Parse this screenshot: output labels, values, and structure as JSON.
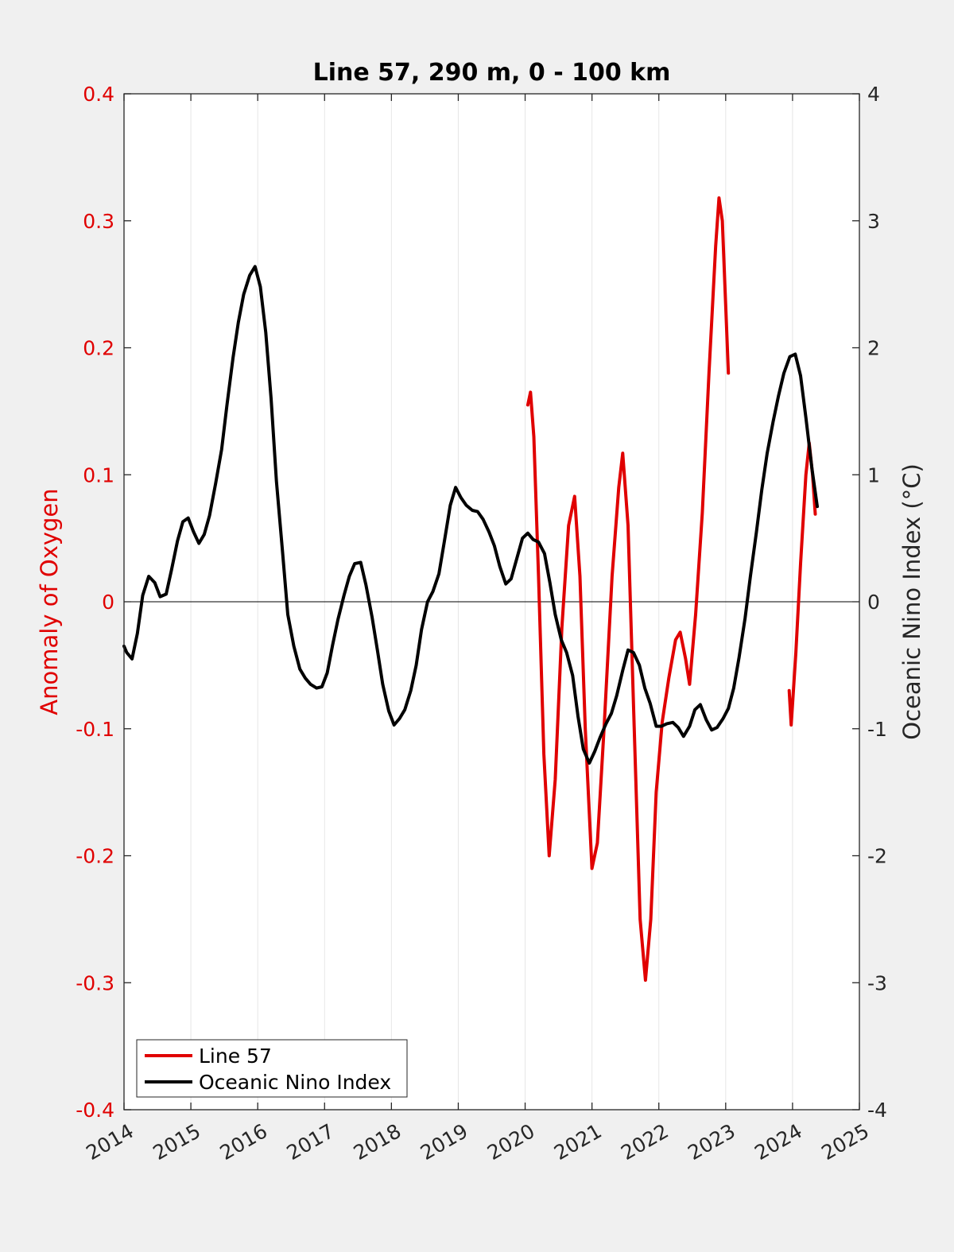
{
  "chart_data": {
    "type": "line",
    "title": "Line 57, 290 m, 0 - 100 km",
    "xlim": [
      2014,
      2025
    ],
    "x_ticks": [
      "2014",
      "2015",
      "2016",
      "2017",
      "2018",
      "2019",
      "2020",
      "2021",
      "2022",
      "2023",
      "2024",
      "2025"
    ],
    "y_left": {
      "label": "Anomaly of Oxygen",
      "range": [
        -0.4,
        0.4
      ],
      "ticks": [
        "-0.4",
        "-0.3",
        "-0.2",
        "-0.1",
        "0",
        "0.1",
        "0.2",
        "0.3",
        "0.4"
      ],
      "color": "#e00000"
    },
    "y_right": {
      "label": "Oceanic Nino Index (°C)",
      "range": [
        -4,
        4
      ],
      "ticks": [
        "-4",
        "-3",
        "-2",
        "-1",
        "0",
        "1",
        "2",
        "3",
        "4"
      ],
      "color": "#262626"
    },
    "grid": "vertical",
    "zero_line": true,
    "legend_position": "bottom-left",
    "series": [
      {
        "name": "Line 57",
        "axis": "left",
        "color": "#e00000",
        "segments": [
          [
            [
              2020.04,
              0.155
            ],
            [
              2020.08,
              0.165
            ],
            [
              2020.13,
              0.13
            ],
            [
              2020.2,
              0.02
            ],
            [
              2020.28,
              -0.12
            ],
            [
              2020.36,
              -0.2
            ],
            [
              2020.45,
              -0.14
            ],
            [
              2020.55,
              -0.02
            ],
            [
              2020.65,
              0.06
            ],
            [
              2020.74,
              0.083
            ],
            [
              2020.82,
              0.02
            ],
            [
              2020.9,
              -0.1
            ],
            [
              2021.0,
              -0.21
            ],
            [
              2021.08,
              -0.19
            ],
            [
              2021.18,
              -0.1
            ],
            [
              2021.3,
              0.02
            ],
            [
              2021.4,
              0.09
            ],
            [
              2021.46,
              0.117
            ],
            [
              2021.54,
              0.06
            ],
            [
              2021.62,
              -0.08
            ],
            [
              2021.72,
              -0.25
            ],
            [
              2021.8,
              -0.298
            ],
            [
              2021.88,
              -0.25
            ],
            [
              2021.96,
              -0.15
            ],
            [
              2022.05,
              -0.095
            ],
            [
              2022.15,
              -0.06
            ],
            [
              2022.25,
              -0.03
            ],
            [
              2022.32,
              -0.024
            ],
            [
              2022.4,
              -0.045
            ],
            [
              2022.46,
              -0.065
            ],
            [
              2022.55,
              -0.01
            ],
            [
              2022.65,
              0.07
            ],
            [
              2022.75,
              0.18
            ],
            [
              2022.85,
              0.28
            ],
            [
              2022.9,
              0.318
            ],
            [
              2022.95,
              0.3
            ],
            [
              2023.04,
              0.18
            ]
          ],
          [
            [
              2023.95,
              -0.07
            ],
            [
              2023.98,
              -0.097
            ],
            [
              2024.05,
              -0.04
            ],
            [
              2024.12,
              0.03
            ],
            [
              2024.2,
              0.1
            ],
            [
              2024.25,
              0.125
            ],
            [
              2024.3,
              0.1
            ],
            [
              2024.34,
              0.069
            ]
          ]
        ]
      },
      {
        "name": "Oceanic Nino Index",
        "axis": "right",
        "color": "#000000",
        "segments": [
          [
            [
              2014.0,
              -0.35
            ],
            [
              2014.04,
              -0.4
            ],
            [
              2014.12,
              -0.45
            ],
            [
              2014.2,
              -0.25
            ],
            [
              2014.28,
              0.05
            ],
            [
              2014.37,
              0.2
            ],
            [
              2014.46,
              0.15
            ],
            [
              2014.54,
              0.04
            ],
            [
              2014.63,
              0.06
            ],
            [
              2014.71,
              0.25
            ],
            [
              2014.8,
              0.48
            ],
            [
              2014.88,
              0.63
            ],
            [
              2014.96,
              0.66
            ],
            [
              2015.04,
              0.55
            ],
            [
              2015.12,
              0.46
            ],
            [
              2015.2,
              0.53
            ],
            [
              2015.28,
              0.68
            ],
            [
              2015.37,
              0.93
            ],
            [
              2015.46,
              1.2
            ],
            [
              2015.54,
              1.55
            ],
            [
              2015.63,
              1.92
            ],
            [
              2015.71,
              2.2
            ],
            [
              2015.79,
              2.42
            ],
            [
              2015.88,
              2.57
            ],
            [
              2015.96,
              2.64
            ],
            [
              2016.04,
              2.48
            ],
            [
              2016.12,
              2.12
            ],
            [
              2016.2,
              1.6
            ],
            [
              2016.28,
              0.95
            ],
            [
              2016.37,
              0.4
            ],
            [
              2016.45,
              -0.1
            ],
            [
              2016.54,
              -0.35
            ],
            [
              2016.63,
              -0.53
            ],
            [
              2016.71,
              -0.6
            ],
            [
              2016.79,
              -0.65
            ],
            [
              2016.88,
              -0.68
            ],
            [
              2016.96,
              -0.67
            ],
            [
              2017.04,
              -0.56
            ],
            [
              2017.12,
              -0.34
            ],
            [
              2017.2,
              -0.14
            ],
            [
              2017.29,
              0.05
            ],
            [
              2017.37,
              0.2
            ],
            [
              2017.45,
              0.3
            ],
            [
              2017.54,
              0.31
            ],
            [
              2017.62,
              0.13
            ],
            [
              2017.71,
              -0.12
            ],
            [
              2017.79,
              -0.38
            ],
            [
              2017.87,
              -0.65
            ],
            [
              2017.96,
              -0.86
            ],
            [
              2018.04,
              -0.97
            ],
            [
              2018.12,
              -0.92
            ],
            [
              2018.2,
              -0.85
            ],
            [
              2018.29,
              -0.7
            ],
            [
              2018.37,
              -0.5
            ],
            [
              2018.45,
              -0.22
            ],
            [
              2018.54,
              0.0
            ],
            [
              2018.62,
              0.08
            ],
            [
              2018.71,
              0.22
            ],
            [
              2018.79,
              0.47
            ],
            [
              2018.88,
              0.76
            ],
            [
              2018.96,
              0.9
            ],
            [
              2019.04,
              0.82
            ],
            [
              2019.12,
              0.76
            ],
            [
              2019.21,
              0.72
            ],
            [
              2019.29,
              0.71
            ],
            [
              2019.37,
              0.65
            ],
            [
              2019.46,
              0.55
            ],
            [
              2019.54,
              0.44
            ],
            [
              2019.62,
              0.28
            ],
            [
              2019.71,
              0.14
            ],
            [
              2019.79,
              0.18
            ],
            [
              2019.87,
              0.33
            ],
            [
              2019.96,
              0.5
            ],
            [
              2020.04,
              0.54
            ],
            [
              2020.12,
              0.49
            ],
            [
              2020.2,
              0.47
            ],
            [
              2020.29,
              0.38
            ],
            [
              2020.37,
              0.15
            ],
            [
              2020.45,
              -0.1
            ],
            [
              2020.54,
              -0.3
            ],
            [
              2020.62,
              -0.4
            ],
            [
              2020.71,
              -0.58
            ],
            [
              2020.79,
              -0.9
            ],
            [
              2020.87,
              -1.16
            ],
            [
              2020.96,
              -1.27
            ],
            [
              2021.04,
              -1.18
            ],
            [
              2021.12,
              -1.07
            ],
            [
              2021.21,
              -0.96
            ],
            [
              2021.29,
              -0.88
            ],
            [
              2021.37,
              -0.74
            ],
            [
              2021.46,
              -0.54
            ],
            [
              2021.54,
              -0.38
            ],
            [
              2021.62,
              -0.4
            ],
            [
              2021.71,
              -0.5
            ],
            [
              2021.79,
              -0.68
            ],
            [
              2021.87,
              -0.8
            ],
            [
              2021.96,
              -0.98
            ],
            [
              2022.04,
              -0.98
            ],
            [
              2022.12,
              -0.96
            ],
            [
              2022.21,
              -0.95
            ],
            [
              2022.29,
              -0.99
            ],
            [
              2022.37,
              -1.06
            ],
            [
              2022.46,
              -0.98
            ],
            [
              2022.54,
              -0.85
            ],
            [
              2022.62,
              -0.81
            ],
            [
              2022.71,
              -0.93
            ],
            [
              2022.79,
              -1.01
            ],
            [
              2022.87,
              -0.99
            ],
            [
              2022.96,
              -0.92
            ],
            [
              2023.04,
              -0.84
            ],
            [
              2023.12,
              -0.68
            ],
            [
              2023.2,
              -0.44
            ],
            [
              2023.29,
              -0.13
            ],
            [
              2023.37,
              0.2
            ],
            [
              2023.46,
              0.55
            ],
            [
              2023.54,
              0.88
            ],
            [
              2023.62,
              1.17
            ],
            [
              2023.71,
              1.42
            ],
            [
              2023.79,
              1.62
            ],
            [
              2023.87,
              1.8
            ],
            [
              2023.96,
              1.93
            ],
            [
              2024.04,
              1.95
            ],
            [
              2024.12,
              1.78
            ],
            [
              2024.2,
              1.45
            ],
            [
              2024.29,
              1.05
            ],
            [
              2024.37,
              0.75
            ]
          ]
        ]
      }
    ]
  }
}
